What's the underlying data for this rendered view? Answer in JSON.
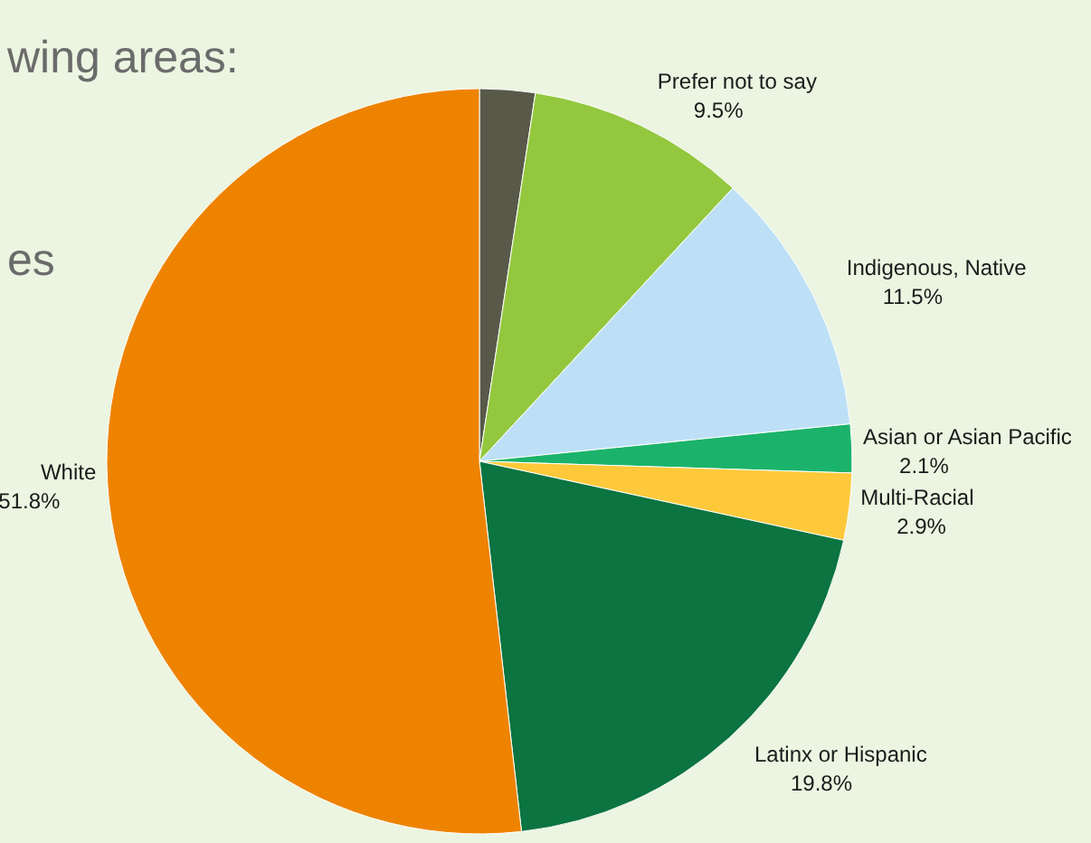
{
  "chart_data": {
    "type": "pie",
    "categories": [
      null,
      "Prefer not to say",
      "Indigenous, Native",
      "Asian or Asian Pacific",
      "Multi-Racial",
      "Latinx or Hispanic",
      "White"
    ],
    "values": [
      2.4,
      9.5,
      11.5,
      2.1,
      2.9,
      19.8,
      51.8
    ],
    "value_labels": [
      null,
      "9.5%",
      "11.5%",
      "2.1%",
      "2.9%",
      "19.8%",
      "51.8%"
    ],
    "colors": [
      "#59594a",
      "#93c83e",
      "#bde0f6",
      "#1bb36b",
      "#fdc93b",
      "#0b7440",
      "#ee8300"
    ],
    "annotations": [
      "wing areas:",
      "es"
    ]
  }
}
